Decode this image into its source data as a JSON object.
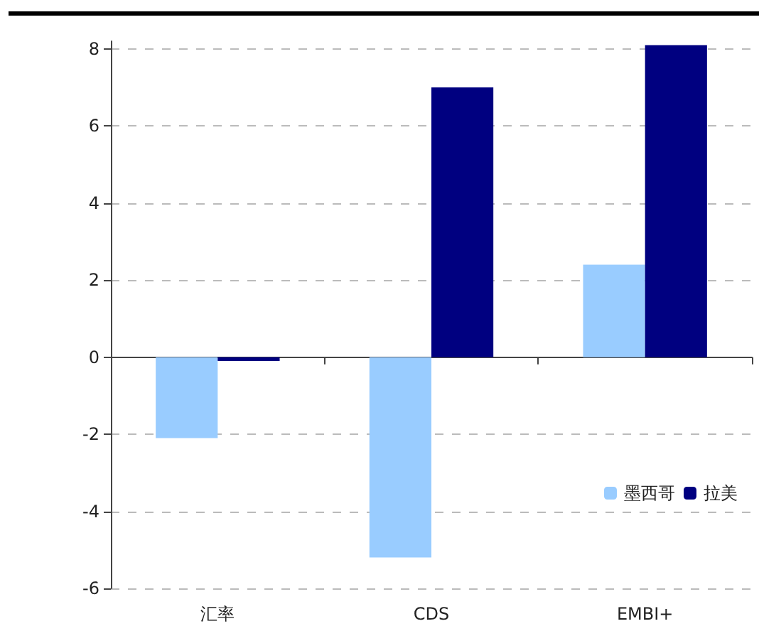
{
  "chart_data": {
    "type": "bar",
    "categories": [
      "汇率",
      "CDS",
      "EMBI+"
    ],
    "series": [
      {
        "name": "墨西哥",
        "color": "#99ccff",
        "values": [
          -2.1,
          -5.2,
          2.4
        ]
      },
      {
        "name": "拉美",
        "color": "#000080",
        "values": [
          -0.1,
          7.0,
          8.1
        ]
      }
    ],
    "ylim": [
      -6,
      8.2
    ],
    "yticks": [
      -6,
      -4,
      -2,
      0,
      2,
      4,
      6,
      8
    ],
    "grid": "y",
    "legend": "right"
  }
}
